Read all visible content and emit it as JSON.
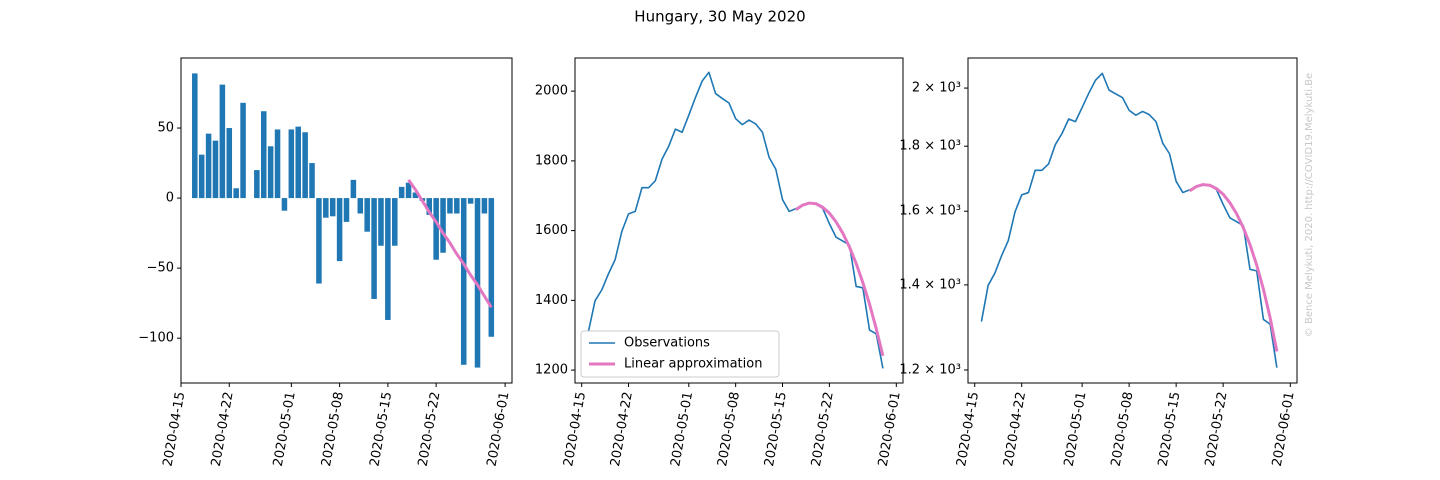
{
  "title": "Hungary, 30 May 2020",
  "watermark": "© Bence Melykuti, 2020. http://COVID19.Melykuti.Be",
  "chart_data": [
    {
      "type": "bar",
      "x": [
        "2020-04-17",
        "2020-04-18",
        "2020-04-19",
        "2020-04-20",
        "2020-04-21",
        "2020-04-22",
        "2020-04-23",
        "2020-04-24",
        "2020-04-25",
        "2020-04-26",
        "2020-04-27",
        "2020-04-28",
        "2020-04-29",
        "2020-04-30",
        "2020-05-01",
        "2020-05-02",
        "2020-05-03",
        "2020-05-04",
        "2020-05-05",
        "2020-05-06",
        "2020-05-07",
        "2020-05-08",
        "2020-05-09",
        "2020-05-10",
        "2020-05-11",
        "2020-05-12",
        "2020-05-13",
        "2020-05-14",
        "2020-05-15",
        "2020-05-16",
        "2020-05-17",
        "2020-05-18",
        "2020-05-19",
        "2020-05-20",
        "2020-05-21",
        "2020-05-22",
        "2020-05-23",
        "2020-05-24",
        "2020-05-25",
        "2020-05-26",
        "2020-05-27",
        "2020-05-28",
        "2020-05-29",
        "2020-05-30"
      ],
      "values": [
        89,
        31,
        46,
        41,
        81,
        50,
        7,
        68,
        0,
        20,
        62,
        37,
        49,
        -9,
        49,
        51,
        47,
        25,
        -61,
        -14,
        -13,
        -45,
        -17,
        13,
        -11,
        -24,
        -72,
        -34,
        -87,
        -34,
        8,
        11,
        4,
        -2,
        -12,
        -44,
        -39,
        -11,
        -11,
        -119,
        -4,
        -121,
        -11,
        -99
      ],
      "color": "#1f77b4",
      "fit_x": [
        "2020-05-18",
        "2020-05-19",
        "2020-05-20",
        "2020-05-21",
        "2020-05-22",
        "2020-05-23",
        "2020-05-24",
        "2020-05-25",
        "2020-05-26",
        "2020-05-27",
        "2020-05-28",
        "2020-05-29",
        "2020-05-30"
      ],
      "fit_values": [
        13,
        6,
        -2,
        -10,
        -17,
        -25,
        -32,
        -40,
        -47,
        -55,
        -62,
        -70,
        -78
      ],
      "fit_color": "#e377c2",
      "xlim": [
        "2020-04-15",
        "2020-06-02"
      ],
      "ylim": [
        -132,
        100
      ],
      "xticks": [
        "2020-04-15",
        "2020-04-22",
        "2020-05-01",
        "2020-05-08",
        "2020-05-15",
        "2020-05-22",
        "2020-06-01"
      ],
      "yticks": [
        {
          "value": -100,
          "label": "−100"
        },
        {
          "value": -50,
          "label": "−50"
        },
        0,
        50
      ]
    },
    {
      "type": "line",
      "x": [
        "2020-04-16",
        "2020-04-17",
        "2020-04-18",
        "2020-04-19",
        "2020-04-20",
        "2020-04-21",
        "2020-04-22",
        "2020-04-23",
        "2020-04-24",
        "2020-04-25",
        "2020-04-26",
        "2020-04-27",
        "2020-04-28",
        "2020-04-29",
        "2020-04-30",
        "2020-05-01",
        "2020-05-02",
        "2020-05-03",
        "2020-05-04",
        "2020-05-05",
        "2020-05-06",
        "2020-05-07",
        "2020-05-08",
        "2020-05-09",
        "2020-05-10",
        "2020-05-11",
        "2020-05-12",
        "2020-05-13",
        "2020-05-14",
        "2020-05-15",
        "2020-05-16",
        "2020-05-17",
        "2020-05-18",
        "2020-05-19",
        "2020-05-20",
        "2020-05-21",
        "2020-05-22",
        "2020-05-23",
        "2020-05-24",
        "2020-05-25",
        "2020-05-26",
        "2020-05-27",
        "2020-05-28",
        "2020-05-29",
        "2020-05-30"
      ],
      "series": [
        {
          "name": "Observations",
          "color": "#1f77b4",
          "values": [
            1310,
            1399,
            1430,
            1476,
            1517,
            1598,
            1648,
            1655,
            1723,
            1723,
            1743,
            1805,
            1842,
            1891,
            1882,
            1931,
            1982,
            2029,
            2054,
            1993,
            1979,
            1966,
            1921,
            1904,
            1917,
            1906,
            1882,
            1810,
            1776,
            1689,
            1655,
            1663,
            1674,
            1678,
            1676,
            1664,
            1620,
            1581,
            1570,
            1559,
            1440,
            1436,
            1315,
            1304,
            1205
          ]
        },
        {
          "name": "Linear approximation",
          "color": "#e377c2",
          "x": [
            "2020-05-17",
            "2020-05-18",
            "2020-05-19",
            "2020-05-20",
            "2020-05-21",
            "2020-05-22",
            "2020-05-23",
            "2020-05-24",
            "2020-05-25",
            "2020-05-26",
            "2020-05-27",
            "2020-05-28",
            "2020-05-29",
            "2020-05-30"
          ],
          "values": [
            1660,
            1673,
            1679,
            1677,
            1667,
            1650,
            1625,
            1593,
            1553,
            1506,
            1451,
            1389,
            1319,
            1241
          ]
        }
      ],
      "legend": "lower left",
      "xlim": [
        "2020-04-14",
        "2020-06-02"
      ],
      "ylim": [
        1163,
        2095
      ],
      "xticks": [
        "2020-04-15",
        "2020-04-22",
        "2020-05-01",
        "2020-05-08",
        "2020-05-15",
        "2020-05-22",
        "2020-06-01"
      ],
      "yticks": [
        1200,
        1400,
        1600,
        1800,
        2000
      ]
    },
    {
      "type": "line",
      "log": true,
      "x": [
        "2020-04-16",
        "2020-04-17",
        "2020-04-18",
        "2020-04-19",
        "2020-04-20",
        "2020-04-21",
        "2020-04-22",
        "2020-04-23",
        "2020-04-24",
        "2020-04-25",
        "2020-04-26",
        "2020-04-27",
        "2020-04-28",
        "2020-04-29",
        "2020-04-30",
        "2020-05-01",
        "2020-05-02",
        "2020-05-03",
        "2020-05-04",
        "2020-05-05",
        "2020-05-06",
        "2020-05-07",
        "2020-05-08",
        "2020-05-09",
        "2020-05-10",
        "2020-05-11",
        "2020-05-12",
        "2020-05-13",
        "2020-05-14",
        "2020-05-15",
        "2020-05-16",
        "2020-05-17",
        "2020-05-18",
        "2020-05-19",
        "2020-05-20",
        "2020-05-21",
        "2020-05-22",
        "2020-05-23",
        "2020-05-24",
        "2020-05-25",
        "2020-05-26",
        "2020-05-27",
        "2020-05-28",
        "2020-05-29",
        "2020-05-30"
      ],
      "series": [
        {
          "name": "Observations",
          "color": "#1f77b4",
          "values": [
            1310,
            1399,
            1430,
            1476,
            1517,
            1598,
            1648,
            1655,
            1723,
            1723,
            1743,
            1805,
            1842,
            1891,
            1882,
            1931,
            1982,
            2029,
            2054,
            1993,
            1979,
            1966,
            1921,
            1904,
            1917,
            1906,
            1882,
            1810,
            1776,
            1689,
            1655,
            1663,
            1674,
            1678,
            1676,
            1664,
            1620,
            1581,
            1570,
            1559,
            1440,
            1436,
            1315,
            1304,
            1205
          ]
        },
        {
          "name": "Linear approximation",
          "color": "#e377c2",
          "x": [
            "2020-05-17",
            "2020-05-18",
            "2020-05-19",
            "2020-05-20",
            "2020-05-21",
            "2020-05-22",
            "2020-05-23",
            "2020-05-24",
            "2020-05-25",
            "2020-05-26",
            "2020-05-27",
            "2020-05-28",
            "2020-05-29",
            "2020-05-30"
          ],
          "values": [
            1660,
            1673,
            1679,
            1677,
            1667,
            1650,
            1625,
            1593,
            1553,
            1506,
            1451,
            1389,
            1319,
            1241
          ]
        }
      ],
      "xlim": [
        "2020-04-14",
        "2020-06-02"
      ],
      "ylim": [
        1172,
        2112
      ],
      "xticks": [
        "2020-04-15",
        "2020-04-22",
        "2020-05-01",
        "2020-05-08",
        "2020-05-15",
        "2020-05-22",
        "2020-06-01"
      ],
      "yticks": [
        {
          "value": 1200,
          "label": "1.2 × 10³"
        },
        {
          "value": 1400,
          "label": "1.4 × 10³"
        },
        {
          "value": 1600,
          "label": "1.6 × 10³"
        },
        {
          "value": 1800,
          "label": "1.8 × 10³"
        },
        {
          "value": 2000,
          "label": "2 × 10³"
        }
      ]
    }
  ]
}
